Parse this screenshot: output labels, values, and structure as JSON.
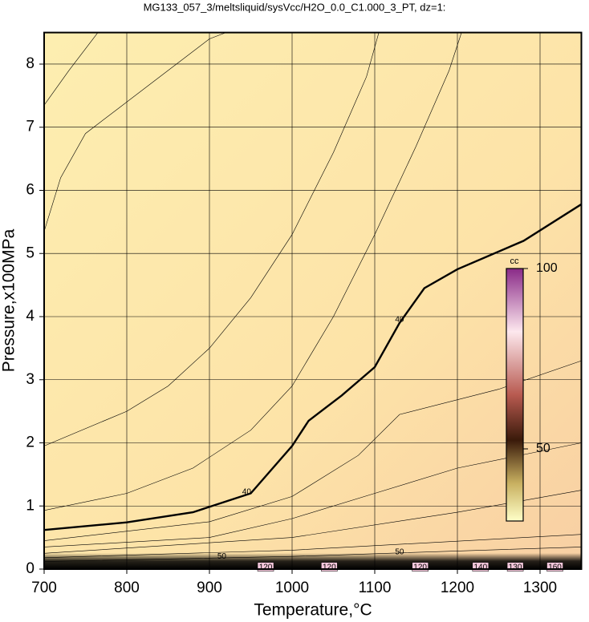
{
  "chart_data": {
    "type": "contour",
    "title": "MG133_057_3/meltsliquid/sysVcc/H2O_0.0_C1.000_3_PT, dz=1:",
    "x_label": "Temperature,°C",
    "y_label": "Pressure,x100MPa",
    "xlim": [
      700,
      1350
    ],
    "ylim": [
      0,
      8.5
    ],
    "xticks": [
      700,
      800,
      900,
      1000,
      1100,
      1200,
      1300
    ],
    "yticks": [
      0,
      1,
      2,
      3,
      4,
      5,
      6,
      7,
      8
    ],
    "grid": true,
    "series": [
      {
        "x": [
          700,
          730,
          765
        ],
        "y": [
          7.35,
          7.9,
          8.5
        ]
      },
      {
        "x": [
          700,
          720,
          750,
          790,
          850,
          900,
          920
        ],
        "y": [
          5.35,
          6.2,
          6.9,
          7.3,
          7.9,
          8.4,
          8.5
        ]
      },
      {
        "x": [
          700,
          800,
          850,
          900,
          950,
          1000,
          1050,
          1090,
          1105
        ],
        "y": [
          1.95,
          2.5,
          2.9,
          3.5,
          4.3,
          5.3,
          6.6,
          7.8,
          8.5
        ]
      },
      {
        "x": [
          700,
          800,
          880,
          950,
          1000,
          1050,
          1100,
          1150,
          1190,
          1205
        ],
        "y": [
          0.93,
          1.2,
          1.6,
          2.2,
          2.9,
          4.0,
          5.3,
          6.7,
          7.9,
          8.5
        ]
      },
      {
        "x": [
          700,
          800,
          880,
          950,
          1000,
          1020,
          1060,
          1100,
          1130,
          1160,
          1200,
          1280,
          1350
        ],
        "y": [
          0.62,
          0.74,
          0.9,
          1.2,
          1.95,
          2.35,
          2.75,
          3.2,
          3.9,
          4.45,
          4.75,
          5.2,
          5.78
        ],
        "bold": true
      },
      {
        "x": [
          700,
          900,
          1000,
          1080,
          1130,
          1250,
          1350
        ],
        "y": [
          0.45,
          0.75,
          1.15,
          1.8,
          2.45,
          2.85,
          3.3
        ]
      },
      {
        "x": [
          700,
          900,
          1000,
          1100,
          1200,
          1350
        ],
        "y": [
          0.35,
          0.5,
          0.8,
          1.2,
          1.6,
          2.0
        ]
      },
      {
        "x": [
          700,
          1000,
          1200,
          1350
        ],
        "y": [
          0.25,
          0.5,
          0.9,
          1.25
        ]
      },
      {
        "x": [
          700,
          1000,
          1350
        ],
        "y": [
          0.18,
          0.3,
          0.55
        ]
      },
      {
        "x": [
          700,
          1000,
          1350
        ],
        "y": [
          0.12,
          0.2,
          0.35
        ]
      }
    ],
    "contour_labels": [
      {
        "text": "40",
        "x": 945,
        "y": 1.22
      },
      {
        "text": "40",
        "x": 1130,
        "y": 3.95
      },
      {
        "text": "50",
        "x": 915,
        "y": 0.2
      },
      {
        "text": "50",
        "x": 1130,
        "y": 0.27
      },
      {
        "text": "120",
        "x": 968,
        "y": 0.03
      },
      {
        "text": "120",
        "x": 1045,
        "y": 0.03
      },
      {
        "text": "120",
        "x": 1155,
        "y": 0.03
      },
      {
        "text": "140",
        "x": 1228,
        "y": 0.03
      },
      {
        "text": "130",
        "x": 1270,
        "y": 0.03
      },
      {
        "text": "160",
        "x": 1318,
        "y": 0.03
      }
    ],
    "colorbar": {
      "label": "cc",
      "lim": [
        30,
        100
      ],
      "ticks": [
        50,
        100
      ]
    }
  }
}
